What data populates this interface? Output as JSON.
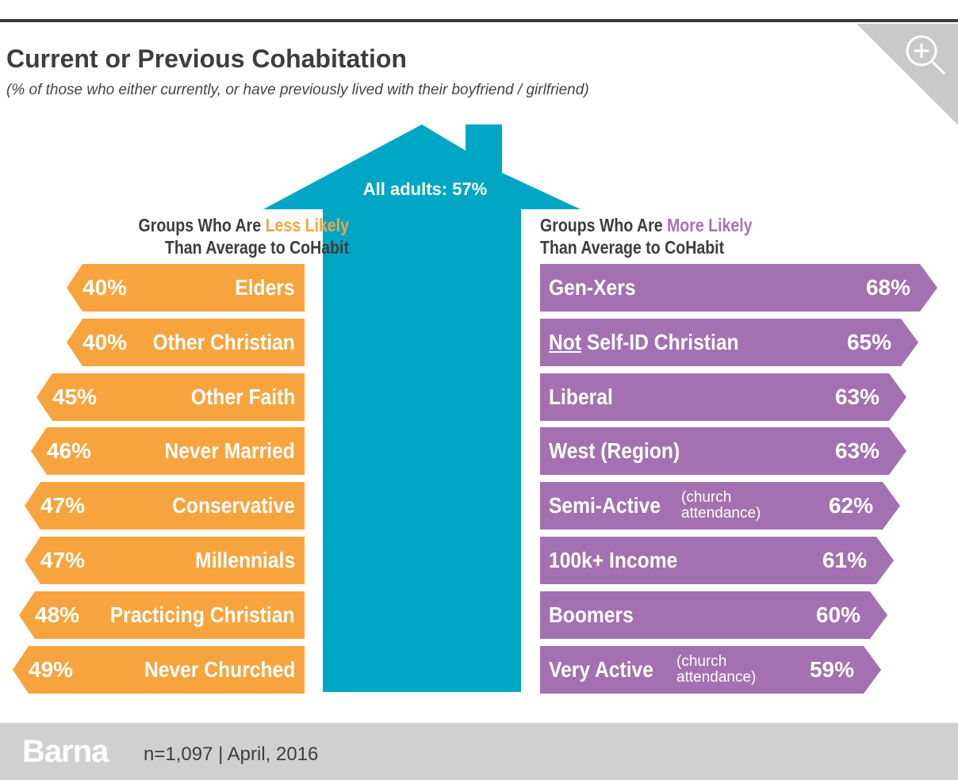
{
  "header": {
    "title": "Current or Previous Cohabitation",
    "subtitle": "(% of those who either currently, or have previously lived with their boyfriend / girlfriend)",
    "zoom_icon": "zoom-in-icon"
  },
  "colors": {
    "less_likely": "#f8a43e",
    "more_likely": "#a371b1",
    "house": "#00a7c4",
    "footer": "#d0d0d0"
  },
  "house": {
    "label": "All adults: 57%",
    "value": 57
  },
  "left": {
    "heading_prefix": "Groups Who Are ",
    "heading_highlight": "Less Likely",
    "heading_line2": "Than Average to CoHabit"
  },
  "right": {
    "heading_prefix": "Groups Who Are ",
    "heading_highlight": "More Likely",
    "heading_line2": "Than Average to CoHabit"
  },
  "chart_data": {
    "type": "bar",
    "title": "Current or Previous Cohabitation",
    "average": {
      "label": "All adults",
      "value": 57
    },
    "series": [
      {
        "name": "Less Likely",
        "categories": [
          "Elders",
          "Other Christian",
          "Other Faith",
          "Never Married",
          "Conservative",
          "Millennials",
          "Practicing Christian",
          "Never Churched"
        ],
        "values": [
          40,
          40,
          45,
          46,
          47,
          47,
          48,
          49
        ],
        "labels": [
          "40%",
          "40%",
          "45%",
          "46%",
          "47%",
          "47%",
          "48%",
          "49%"
        ]
      },
      {
        "name": "More Likely",
        "categories": [
          "Gen-Xers",
          "Not Self-ID Christian",
          "Liberal",
          "West (Region)",
          "Semi-Active",
          "100k+ Income",
          "Boomers",
          "Very Active"
        ],
        "values": [
          68,
          65,
          63,
          63,
          62,
          61,
          60,
          59
        ],
        "labels": [
          "68%",
          "65%",
          "63%",
          "63%",
          "62%",
          "61%",
          "60%",
          "59%"
        ],
        "notes": [
          "",
          "",
          "",
          "",
          "(church attendance)",
          "",
          "",
          "(church attendance)"
        ]
      }
    ]
  },
  "footer": {
    "brand": "Barna",
    "note": "n=1,097  |  April, 2016"
  }
}
